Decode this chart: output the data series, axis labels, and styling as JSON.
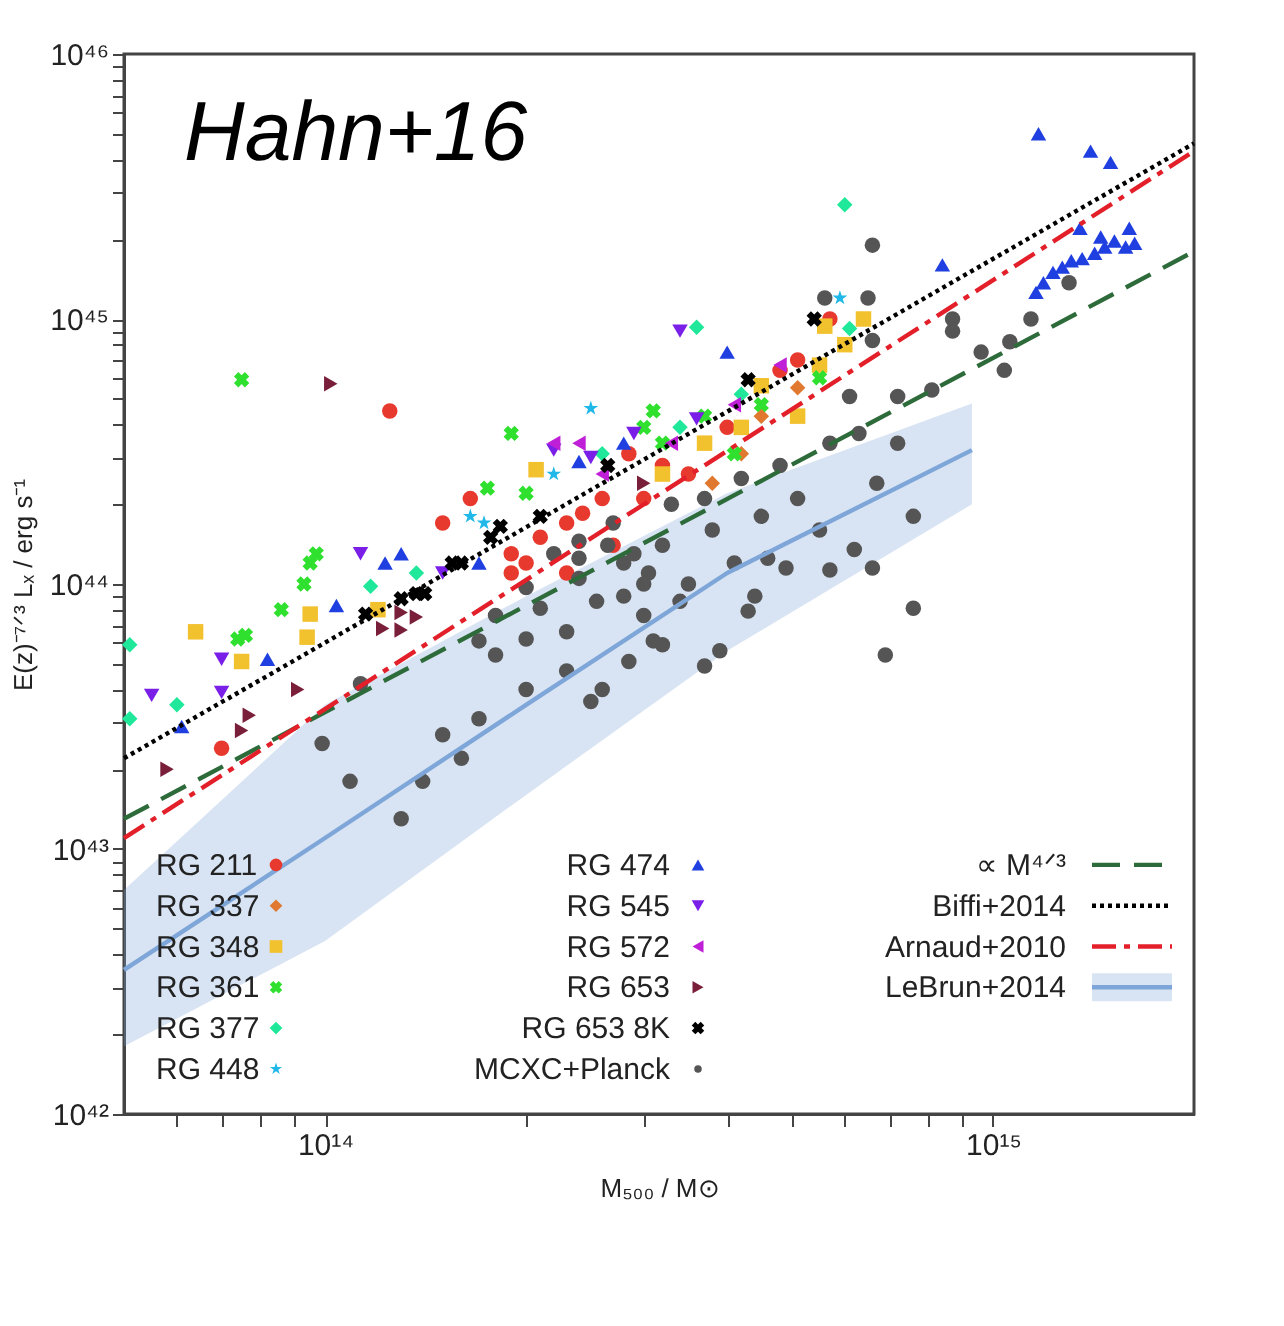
{
  "chart_data": {
    "type": "scatter",
    "xlabel": "M₅₀₀ / M⊙",
    "ylabel": "E(z)⁻⁷ᐟ³ Lₓ / erg s⁻¹",
    "annotations": [
      "Hahn+16"
    ],
    "log": "xy",
    "grid": false,
    "legend": "bottom",
    "xlim": [
      50000000000000.0,
      2000000000000000.0
    ],
    "ylim": [
      1e+42,
      1e+46
    ],
    "xticks": [
      {
        "value": 60000000000000.0,
        "label": null
      },
      {
        "value": 70000000000000.0,
        "label": null
      },
      {
        "value": 80000000000000.0,
        "label": null
      },
      {
        "value": 90000000000000.0,
        "label": null
      },
      {
        "value": 100000000000000.0,
        "label": "10¹⁴"
      },
      {
        "value": 200000000000000.0,
        "label": null
      },
      {
        "value": 300000000000000.0,
        "label": null
      },
      {
        "value": 400000000000000.0,
        "label": null
      },
      {
        "value": 500000000000000.0,
        "label": null
      },
      {
        "value": 600000000000000.0,
        "label": null
      },
      {
        "value": 700000000000000.0,
        "label": null
      },
      {
        "value": 800000000000000.0,
        "label": null
      },
      {
        "value": 900000000000000.0,
        "label": null
      },
      {
        "value": 1000000000000000.0,
        "label": "10¹⁵"
      }
    ],
    "yticks": [
      {
        "value": 1e+42,
        "label": "10⁴²"
      },
      {
        "value": 2e+42,
        "label": null
      },
      {
        "value": 3e+42,
        "label": null
      },
      {
        "value": 4e+42,
        "label": null
      },
      {
        "value": 5e+42,
        "label": null
      },
      {
        "value": 6e+42,
        "label": null
      },
      {
        "value": 7e+42,
        "label": null
      },
      {
        "value": 8e+42,
        "label": null
      },
      {
        "value": 9e+42,
        "label": null
      },
      {
        "value": 1e+43,
        "label": "10⁴³"
      },
      {
        "value": 2e+43,
        "label": null
      },
      {
        "value": 3e+43,
        "label": null
      },
      {
        "value": 4e+43,
        "label": null
      },
      {
        "value": 5e+43,
        "label": null
      },
      {
        "value": 6e+43,
        "label": null
      },
      {
        "value": 7e+43,
        "label": null
      },
      {
        "value": 8e+43,
        "label": null
      },
      {
        "value": 9e+43,
        "label": null
      },
      {
        "value": 1e+44,
        "label": "10⁴⁴"
      },
      {
        "value": 2e+44,
        "label": null
      },
      {
        "value": 3e+44,
        "label": null
      },
      {
        "value": 4e+44,
        "label": null
      },
      {
        "value": 5e+44,
        "label": null
      },
      {
        "value": 6e+44,
        "label": null
      },
      {
        "value": 7e+44,
        "label": null
      },
      {
        "value": 8e+44,
        "label": null
      },
      {
        "value": 9e+44,
        "label": null
      },
      {
        "value": 1e+45,
        "label": "10⁴⁵"
      },
      {
        "value": 2e+45,
        "label": null
      },
      {
        "value": 3e+45,
        "label": null
      },
      {
        "value": 4e+45,
        "label": null
      },
      {
        "value": 5e+45,
        "label": null
      },
      {
        "value": 6e+45,
        "label": null
      },
      {
        "value": 7e+45,
        "label": null
      },
      {
        "value": 8e+45,
        "label": null
      },
      {
        "value": 9e+45,
        "label": null
      },
      {
        "value": 1e+46,
        "label": "10⁴⁶"
      }
    ],
    "series": [
      {
        "name": "RG 211",
        "marker": "circle",
        "color": "#e8392f",
        "x": [
          125000000000000.0,
          70000000000000.0,
          150000000000000.0,
          165000000000000.0,
          190000000000000.0,
          200000000000000.0,
          210000000000000.0,
          230000000000000.0,
          243000000000000.0,
          260000000000000.0,
          285000000000000.0,
          570000000000000.0,
          480000000000000.0,
          510000000000000.0,
          320000000000000.0,
          350000000000000.0,
          300000000000000.0,
          270000000000000.0,
          400000000000000.0,
          230000000000000.0,
          190000000000000.0
        ],
        "values": [
          4.5e+44,
          2.4e+43,
          1.7e+44,
          2.1e+44,
          1.3e+44,
          1.2e+44,
          1.5e+44,
          1.7e+44,
          1.85e+44,
          2.1e+44,
          3.1e+44,
          1e+45,
          6.4e+44,
          7e+44,
          2.8e+44,
          2.6e+44,
          2.1e+44,
          1.4e+44,
          3.9e+44,
          1.1e+44,
          1.1e+44
        ]
      },
      {
        "name": "RG 337",
        "marker": "diamond",
        "color": "#e0792f",
        "x": [
          450000000000000.0,
          420000000000000.0,
          380000000000000.0,
          510000000000000.0
        ],
        "values": [
          4.3e+44,
          3.1e+44,
          2.4e+44,
          5.5e+44
        ]
      },
      {
        "name": "RG 348",
        "marker": "square",
        "color": "#f2c12e",
        "x": [
          64000000000000.0,
          75000000000000.0,
          95000000000000.0,
          94000000000000.0,
          120000000000000.0,
          207000000000000.0,
          560000000000000.0,
          550000000000000.0,
          600000000000000.0,
          450000000000000.0,
          420000000000000.0,
          370000000000000.0,
          510000000000000.0,
          320000000000000.0,
          640000000000000.0
        ],
        "values": [
          6.6e+43,
          5.1e+43,
          7.7e+43,
          6.3e+43,
          8e+43,
          2.7e+44,
          9.4e+44,
          6.7e+44,
          8e+44,
          5.6e+44,
          3.9e+44,
          3.4e+44,
          4.3e+44,
          2.6e+44,
          1e+45
        ]
      },
      {
        "name": "RG 361",
        "marker": "cross",
        "color": "#2fe02f",
        "x": [
          75000000000000.0,
          190000000000000.0,
          310000000000000.0,
          97000000000000.0,
          95000000000000.0,
          93000000000000.0,
          86000000000000.0,
          74000000000000.0,
          76000000000000.0,
          175000000000000.0,
          200000000000000.0,
          300000000000000.0,
          370000000000000.0,
          450000000000000.0,
          550000000000000.0,
          410000000000000.0,
          320000000000000.0
        ],
        "values": [
          5.9e+44,
          3.7e+44,
          4.5e+44,
          1.3e+44,
          1.2e+44,
          1e+44,
          8e+43,
          6.2e+43,
          6.4e+43,
          2.3e+44,
          2.2e+44,
          3.9e+44,
          4.3e+44,
          4.75e+44,
          6e+44,
          3.1e+44,
          3.4e+44
        ]
      },
      {
        "name": "RG 377",
        "marker": "diamond",
        "color": "#1fe89a",
        "x": [
          600000000000000.0,
          360000000000000.0,
          610000000000000.0,
          51000000000000.0,
          51000000000000.0,
          60000000000000.0,
          117000000000000.0,
          137000000000000.0,
          340000000000000.0,
          420000000000000.0,
          260000000000000.0
        ],
        "values": [
          2.7e+45,
          9.3e+44,
          9.2e+44,
          5.9e+43,
          3.1e+43,
          3.5e+43,
          9.8e+43,
          1.1e+44,
          3.9e+44,
          5.2e+44,
          3.1e+44
        ]
      },
      {
        "name": "RG 448",
        "marker": "star",
        "color": "#1fb8e8",
        "x": [
          250000000000000.0,
          165000000000000.0,
          220000000000000.0,
          173000000000000.0,
          590000000000000.0
        ],
        "values": [
          4.6e+44,
          1.8e+44,
          2.6e+44,
          1.7e+44,
          1.2e+45
        ]
      },
      {
        "name": "RG 474",
        "marker": "triangle",
        "color": "#1f3fe0",
        "x": [
          1170000000000000.0,
          1400000000000000.0,
          1500000000000000.0,
          1350000000000000.0,
          1600000000000000.0,
          840000000000000.0,
          400000000000000.0,
          1160000000000000.0,
          1190000000000000.0,
          1230000000000000.0,
          1270000000000000.0,
          1310000000000000.0,
          1360000000000000.0,
          1420000000000000.0,
          1470000000000000.0,
          1520000000000000.0,
          1580000000000000.0,
          1450000000000000.0,
          1630000000000000.0,
          82000000000000.0,
          61000000000000.0,
          104000000000000.0,
          123000000000000.0,
          130000000000000.0,
          170000000000000.0,
          280000000000000.0,
          240000000000000.0
        ],
        "values": [
          5e+45,
          4.3e+45,
          3.9e+45,
          2.2e+45,
          2.2e+45,
          1.6e+45,
          7.5e+44,
          1.26e+45,
          1.37e+45,
          1.5e+45,
          1.57e+45,
          1.66e+45,
          1.69e+45,
          1.77e+45,
          1.87e+45,
          1.97e+45,
          1.87e+45,
          2.04e+45,
          1.93e+45,
          5.2e+43,
          2.9e+43,
          8.3e+43,
          1.2e+44,
          1.3e+44,
          1.2e+44,
          3.4e+44,
          2.9e+44
        ]
      },
      {
        "name": "RG 545",
        "marker": "triangle-down",
        "color": "#7a1fe8",
        "x": [
          340000000000000.0,
          55000000000000.0,
          70000000000000.0,
          113000000000000.0,
          70000000000000.0,
          150000000000000.0,
          220000000000000.0,
          250000000000000.0,
          360000000000000.0,
          290000000000000.0
        ],
        "values": [
          9e+44,
          3.8e+43,
          3.9e+43,
          1.3e+44,
          5.2e+43,
          1.1e+44,
          3.2e+44,
          3e+44,
          4.2e+44,
          3.7e+44
        ]
      },
      {
        "name": "RG 572",
        "marker": "triangle-left",
        "color": "#c01fd8",
        "x": [
          240000000000000.0,
          220000000000000.0,
          260000000000000.0,
          330000000000000.0,
          410000000000000.0,
          480000000000000.0
        ],
        "values": [
          3.4e+44,
          3.4e+44,
          2.6e+44,
          3.4e+44,
          4.75e+44,
          6.7e+44
        ]
      },
      {
        "name": "RG 653",
        "marker": "triangle-right",
        "color": "#7a1f3a",
        "x": [
          102000000000000.0,
          58000000000000.0,
          75000000000000.0,
          77000000000000.0,
          91000000000000.0,
          122000000000000.0,
          130000000000000.0,
          137000000000000.0,
          130000000000000.0,
          300000000000000.0
        ],
        "values": [
          5.7e+44,
          2e+43,
          2.8e+43,
          3.2e+43,
          4e+43,
          6.8e+43,
          6.7e+43,
          7.5e+43,
          7.8e+43,
          2.4e+44
        ]
      },
      {
        "name": "RG 653 8K",
        "marker": "cross",
        "color": "#000000",
        "x": [
          115000000000000.0,
          130000000000000.0,
          137000000000000.0,
          141000000000000.0,
          155000000000000.0,
          160000000000000.0,
          177000000000000.0,
          183000000000000.0,
          210000000000000.0,
          265000000000000.0,
          540000000000000.0,
          430000000000000.0
        ],
        "values": [
          7.7e+43,
          8.8e+43,
          9.2e+43,
          9.2e+43,
          1.2e+44,
          1.2e+44,
          1.5e+44,
          1.65e+44,
          1.8e+44,
          2.8e+44,
          1e+45,
          5.9e+44
        ]
      },
      {
        "name": "MCXC+Planck",
        "marker": "point",
        "color": "#555555",
        "x": [
          760000000000000.0,
          620000000000000.0,
          660000000000000.0,
          570000000000000.0,
          490000000000000.0,
          760000000000000.0,
          690000000000000.0,
          440000000000000.0,
          430000000000000.0,
          370000000000000.0,
          460000000000000.0,
          340000000000000.0,
          320000000000000.0,
          660000000000000.0,
          650000000000000.0,
          560000000000000.0,
          870000000000000.0,
          1040000000000000.0,
          1140000000000000.0,
          1300000000000000.0,
          1060000000000000.0,
          960000000000000.0,
          870000000000000.0,
          810000000000000.0,
          720000000000000.0,
          660000000000000.0,
          113000000000000.0,
          99000000000000.0,
          109000000000000.0,
          150000000000000.0,
          180000000000000.0,
          200000000000000.0,
          230000000000000.0,
          260000000000000.0,
          285000000000000.0,
          300000000000000.0,
          280000000000000.0,
          255000000000000.0,
          240000000000000.0,
          210000000000000.0,
          200000000000000.0,
          180000000000000.0,
          170000000000000.0,
          290000000000000.0,
          265000000000000.0,
          240000000000000.0,
          220000000000000.0,
          305000000000000.0,
          330000000000000.0,
          370000000000000.0,
          420000000000000.0,
          480000000000000.0,
          380000000000000.0,
          320000000000000.0,
          450000000000000.0,
          510000000000000.0,
          570000000000000.0,
          630000000000000.0,
          410000000000000.0,
          300000000000000.0,
          350000000000000.0,
          550000000000000.0,
          670000000000000.0,
          610000000000000.0,
          720000000000000.0,
          270000000000000.0,
          240000000000000.0,
          280000000000000.0,
          130000000000000.0,
          140000000000000.0,
          160000000000000.0,
          170000000000000.0,
          200000000000000.0,
          230000000000000.0,
          250000000000000.0,
          310000000000000.0,
          390000000000000.0
        ],
        "values": [
          1.8e+44,
          1.35e+44,
          1.15e+44,
          1.13e+44,
          1.15e+44,
          8.1e+43,
          5.4e+43,
          9e+43,
          7.9e+43,
          4.9e+43,
          1.25e+44,
          8.6e+43,
          5.9e+43,
          1.9e+45,
          1.2e+45,
          1.2e+45,
          1e+45,
          6.4e+44,
          1e+45,
          1.37e+45,
          8.2e+44,
          7.5e+44,
          9e+44,
          5.4e+44,
          5.1e+44,
          8.3e+44,
          4.2e+43,
          2.5e+43,
          1.8e+43,
          2.7e+43,
          5.4e+43,
          6.2e+43,
          6.6e+43,
          4e+43,
          5.1e+43,
          7.6e+43,
          9e+43,
          8.6e+43,
          1.05e+44,
          8.1e+43,
          9.7e+43,
          7.6e+43,
          6.1e+43,
          1.3e+44,
          1.4e+44,
          1.25e+44,
          1.3e+44,
          1.1e+44,
          2e+44,
          2.1e+44,
          2.5e+44,
          2.8e+44,
          1.6e+44,
          1.4e+44,
          1.8e+44,
          2.1e+44,
          3.4e+44,
          3.7e+44,
          1.2e+44,
          1e+44,
          1e+44,
          1.6e+44,
          2.4e+44,
          5.1e+44,
          3.4e+44,
          1.7e+44,
          1.45e+44,
          1.2e+44,
          1.3e+43,
          1.8e+43,
          2.2e+43,
          3.1e+43,
          4e+43,
          4.7e+43,
          3.6e+43,
          6.1e+43,
          5.6e+43
        ]
      },
      {
        "name": "∝ M⁴ᐟ³",
        "type": "line",
        "line_style": "dashed",
        "color": "#2e6b3a",
        "x": [
          50000000000000.0,
          2000000000000000.0
        ],
        "values": [
          1.3e+43,
          1.8e+45
        ]
      },
      {
        "name": "Biffi+2014",
        "type": "line",
        "line_style": "dotted",
        "color": "#000000",
        "x": [
          50000000000000.0,
          2000000000000000.0
        ],
        "values": [
          2.2e+43,
          4.6e+45
        ]
      },
      {
        "name": "Arnaud+2010",
        "type": "line",
        "line_style": "dashdot",
        "color": "#e3202a",
        "x": [
          50000000000000.0,
          2000000000000000.0
        ],
        "values": [
          1.1e+43,
          4.3e+45
        ]
      },
      {
        "name": "LeBrun+2014",
        "type": "line",
        "line_style": "solid",
        "color": "#7ea6d8",
        "x": [
          50000000000000.0,
          100000000000000.0,
          200000000000000.0,
          400000000000000.0,
          930000000000000.0
        ],
        "values": [
          3.5e+42,
          1.1e+43,
          3.5e+43,
          1.1e+44,
          3.2e+44
        ],
        "lower": [
          1.8e+42,
          4.5e+42,
          1.6e+43,
          5.6e+43,
          2e+44
        ],
        "upper": [
          7e+42,
          3.5e+43,
          9e+43,
          2.2e+44,
          4.8e+44
        ]
      }
    ]
  }
}
